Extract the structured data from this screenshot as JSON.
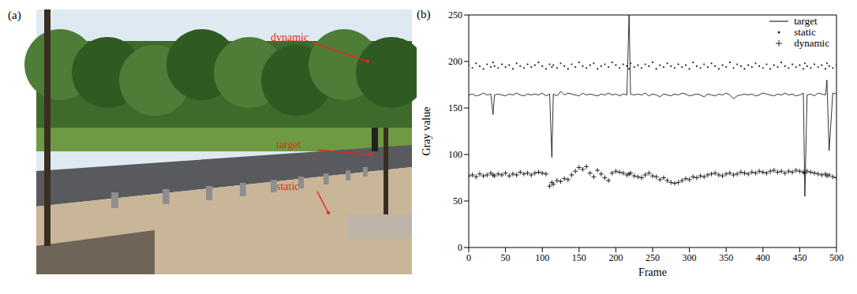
{
  "image": {
    "label": "(a)",
    "annotations": [
      {
        "text": "dynamic"
      },
      {
        "text": "target"
      },
      {
        "text": "static"
      }
    ]
  },
  "chart_data": {
    "type": "line",
    "title": "(b)",
    "x_label": "Frame",
    "y_label": "Gray value",
    "xlim": [
      0,
      500
    ],
    "xticks": [
      0,
      50,
      100,
      150,
      200,
      250,
      300,
      350,
      400,
      450,
      500
    ],
    "ylim": [
      0,
      250
    ],
    "yticks": [
      0,
      50,
      100,
      150,
      200,
      250
    ],
    "grid": false,
    "legend": "upper right",
    "x": [
      0,
      5,
      10,
      15,
      20,
      25,
      30,
      33,
      35,
      40,
      45,
      50,
      55,
      60,
      65,
      70,
      75,
      80,
      85,
      90,
      95,
      100,
      105,
      110,
      113,
      115,
      120,
      125,
      130,
      135,
      140,
      145,
      150,
      155,
      160,
      165,
      170,
      175,
      180,
      185,
      190,
      195,
      200,
      205,
      210,
      215,
      218,
      220,
      225,
      230,
      235,
      240,
      245,
      250,
      255,
      260,
      265,
      270,
      275,
      280,
      285,
      290,
      295,
      300,
      305,
      310,
      315,
      320,
      325,
      330,
      335,
      340,
      345,
      350,
      355,
      360,
      365,
      370,
      375,
      380,
      385,
      390,
      395,
      400,
      405,
      410,
      415,
      420,
      425,
      430,
      435,
      440,
      445,
      450,
      455,
      457,
      460,
      465,
      470,
      475,
      480,
      485,
      487,
      490,
      495,
      500
    ],
    "series": [
      {
        "name": "target",
        "type": "line",
        "color": "#000000",
        "marker": "none",
        "line_style": "solid",
        "values": [
          164,
          165,
          163,
          164,
          166,
          164,
          165,
          143,
          164,
          165,
          164,
          163,
          165,
          164,
          166,
          164,
          163,
          165,
          164,
          165,
          164,
          166,
          163,
          165,
          97,
          165,
          163,
          168,
          164,
          166,
          165,
          164,
          163,
          166,
          164,
          165,
          164,
          163,
          165,
          164,
          166,
          164,
          165,
          163,
          165,
          164,
          250,
          165,
          164,
          165,
          164,
          166,
          163,
          165,
          164,
          162,
          165,
          164,
          163,
          165,
          164,
          166,
          165,
          163,
          164,
          165,
          164,
          162,
          165,
          164,
          163,
          165,
          164,
          166,
          164,
          160,
          163,
          164,
          165,
          164,
          165,
          163,
          164,
          166,
          165,
          164,
          163,
          165,
          164,
          166,
          164,
          165,
          163,
          164,
          166,
          55,
          164,
          165,
          163,
          166,
          165,
          164,
          180,
          104,
          166,
          165
        ]
      },
      {
        "name": "static",
        "type": "scatter",
        "color": "#222222",
        "marker": "dot",
        "values": [
          196,
          193,
          198,
          195,
          192,
          197,
          194,
          199,
          195,
          193,
          197,
          194,
          196,
          192,
          198,
          195,
          193,
          197,
          194,
          196,
          199,
          195,
          192,
          197,
          194,
          196,
          193,
          198,
          195,
          192,
          197,
          194,
          199,
          195,
          193,
          196,
          198,
          192,
          195,
          197,
          194,
          199,
          196,
          193,
          197,
          195,
          192,
          198,
          194,
          196,
          193,
          197,
          195,
          199,
          192,
          196,
          194,
          198,
          195,
          193,
          197,
          194,
          196,
          192,
          199,
          195,
          193,
          197,
          194,
          198,
          195,
          192,
          196,
          194,
          199,
          193,
          197,
          195,
          192,
          196,
          194,
          198,
          195,
          193,
          197,
          192,
          196,
          194,
          199,
          195,
          193,
          197,
          194,
          196,
          192,
          198,
          195,
          193,
          197,
          194,
          196,
          192,
          198,
          195,
          193,
          196
        ]
      },
      {
        "name": "dynamic",
        "type": "scatter",
        "color": "#222222",
        "marker": "plus",
        "values": [
          77,
          78,
          76,
          79,
          77,
          78,
          80,
          78,
          77,
          79,
          78,
          80,
          77,
          79,
          78,
          81,
          79,
          80,
          78,
          80,
          81,
          80,
          79,
          66,
          70,
          68,
          72,
          71,
          74,
          73,
          78,
          82,
          86,
          84,
          87,
          80,
          76,
          83,
          79,
          75,
          72,
          80,
          82,
          81,
          80,
          78,
          79,
          80,
          77,
          76,
          75,
          78,
          80,
          77,
          76,
          73,
          75,
          72,
          70,
          69,
          70,
          72,
          74,
          73,
          76,
          75,
          77,
          76,
          78,
          79,
          80,
          78,
          77,
          79,
          80,
          78,
          79,
          81,
          80,
          79,
          81,
          80,
          82,
          81,
          80,
          82,
          83,
          81,
          82,
          80,
          82,
          81,
          83,
          82,
          81,
          80,
          82,
          81,
          80,
          79,
          78,
          79,
          77,
          78,
          76,
          75
        ]
      }
    ]
  }
}
